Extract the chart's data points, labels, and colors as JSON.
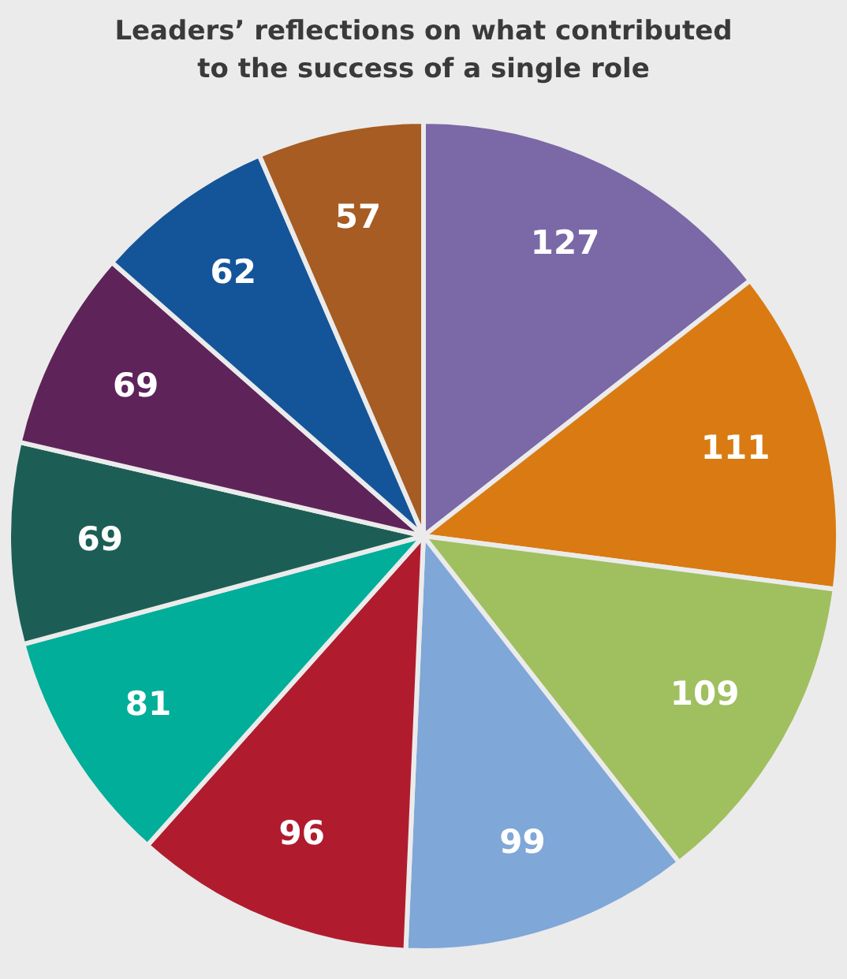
{
  "chart_data": {
    "type": "pie",
    "title": "Leaders’ reflections on what contributed\nto the success of a single role",
    "categories": [
      null,
      null,
      null,
      null,
      null,
      null,
      null,
      null,
      null,
      null
    ],
    "values": [
      127,
      111,
      109,
      99,
      96,
      81,
      69,
      69,
      62,
      57
    ],
    "colors": [
      "#7b68a6",
      "#d97b12",
      "#a0bf5f",
      "#7fa7d8",
      "#b01c2e",
      "#00ae9a",
      "#1c5e55",
      "#5e2459",
      "#14559a",
      "#a65c22"
    ],
    "data_labels": true,
    "legend": false
  }
}
